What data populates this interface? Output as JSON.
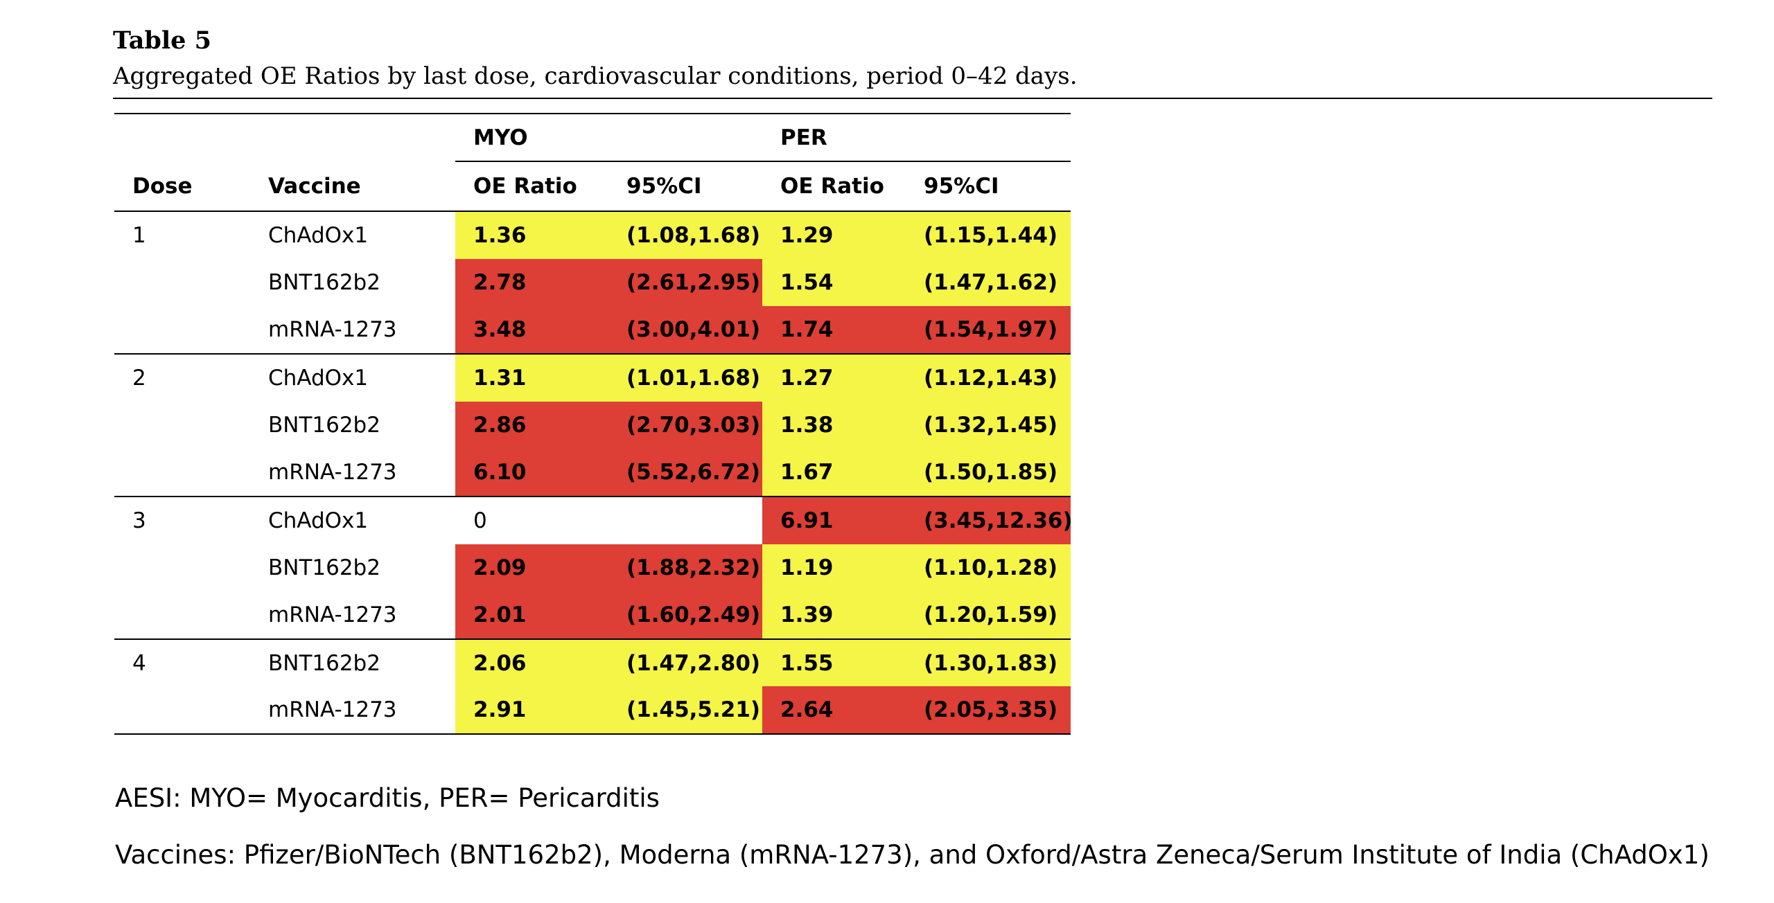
{
  "document": {
    "title": "Table 5",
    "caption": "Aggregated OE Ratios by last dose, cardiovascular conditions, period 0–42 days."
  },
  "table": {
    "group_headers": {
      "myo": "MYO",
      "per": "PER"
    },
    "columns": [
      "Dose",
      "Vaccine",
      "OE Ratio",
      "95%CI",
      "OE Ratio",
      "95%CI"
    ],
    "rows": [
      {
        "dose": "1",
        "vaccine": "ChAdOx1",
        "myo_oe": "1.36",
        "myo_ci": "(1.08,1.68)",
        "per_oe": "1.29",
        "per_ci": "(1.15,1.44)",
        "myo_color": "yellow",
        "per_color": "yellow"
      },
      {
        "dose": "",
        "vaccine": "BNT162b2",
        "myo_oe": "2.78",
        "myo_ci": "(2.61,2.95)",
        "per_oe": "1.54",
        "per_ci": "(1.47,1.62)",
        "myo_color": "red",
        "per_color": "yellow"
      },
      {
        "dose": "",
        "vaccine": "mRNA-1273",
        "myo_oe": "3.48",
        "myo_ci": "(3.00,4.01)",
        "per_oe": "1.74",
        "per_ci": "(1.54,1.97)",
        "myo_color": "red",
        "per_color": "red"
      },
      {
        "dose": "2",
        "vaccine": "ChAdOx1",
        "myo_oe": "1.31",
        "myo_ci": "(1.01,1.68)",
        "per_oe": "1.27",
        "per_ci": "(1.12,1.43)",
        "myo_color": "yellow",
        "per_color": "yellow"
      },
      {
        "dose": "",
        "vaccine": "BNT162b2",
        "myo_oe": "2.86",
        "myo_ci": "(2.70,3.03)",
        "per_oe": "1.38",
        "per_ci": "(1.32,1.45)",
        "myo_color": "red",
        "per_color": "yellow"
      },
      {
        "dose": "",
        "vaccine": "mRNA-1273",
        "myo_oe": "6.10",
        "myo_ci": "(5.52,6.72)",
        "per_oe": "1.67",
        "per_ci": "(1.50,1.85)",
        "myo_color": "red",
        "per_color": "yellow"
      },
      {
        "dose": "3",
        "vaccine": "ChAdOx1",
        "myo_oe": "0",
        "myo_ci": "",
        "per_oe": "6.91",
        "per_ci": "(3.45,12.36)",
        "myo_color": "none",
        "per_color": "red"
      },
      {
        "dose": "",
        "vaccine": "BNT162b2",
        "myo_oe": "2.09",
        "myo_ci": "(1.88,2.32)",
        "per_oe": "1.19",
        "per_ci": "(1.10,1.28)",
        "myo_color": "red",
        "per_color": "yellow"
      },
      {
        "dose": "",
        "vaccine": "mRNA-1273",
        "myo_oe": "2.01",
        "myo_ci": "(1.60,2.49)",
        "per_oe": "1.39",
        "per_ci": "(1.20,1.59)",
        "myo_color": "red",
        "per_color": "yellow"
      },
      {
        "dose": "4",
        "vaccine": "BNT162b2",
        "myo_oe": "2.06",
        "myo_ci": "(1.47,2.80)",
        "per_oe": "1.55",
        "per_ci": "(1.30,1.83)",
        "myo_color": "yellow",
        "per_color": "yellow"
      },
      {
        "dose": "",
        "vaccine": "mRNA-1273",
        "myo_oe": "2.91",
        "myo_ci": "(1.45,5.21)",
        "per_oe": "2.64",
        "per_ci": "(2.05,3.35)",
        "myo_color": "yellow",
        "per_color": "red"
      }
    ]
  },
  "notes": {
    "aesi": "AESI: MYO= Myocarditis, PER= Pericarditis",
    "vaccines": "Vaccines: Pfizer/BioNTech (BNT162b2), Moderna (mRNA-1273), and Oxford/Astra Zeneca/Serum Institute of India (ChAdOx1)"
  },
  "colors": {
    "yellow": "#f4f547",
    "red": "#dd3e35"
  }
}
